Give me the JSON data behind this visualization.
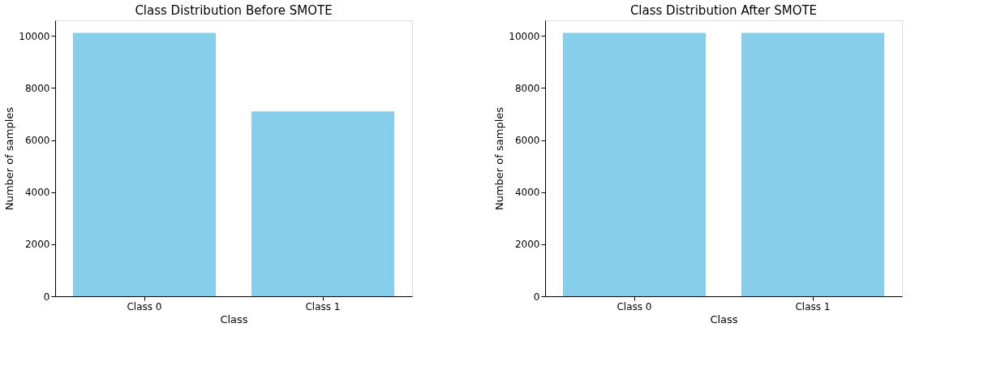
{
  "chart_data": [
    {
      "type": "bar",
      "title": "Class Distribution Before SMOTE",
      "xlabel": "Class",
      "ylabel": "Number of samples",
      "categories": [
        "Class 0",
        "Class 1"
      ],
      "values": [
        10120,
        7100
      ],
      "color": "#87ceeb",
      "ylim": [
        0,
        10600
      ],
      "yticks": [
        0,
        2000,
        4000,
        6000,
        8000,
        10000
      ],
      "grid": false
    },
    {
      "type": "bar",
      "title": "Class Distribution After SMOTE",
      "xlabel": "Class",
      "ylabel": "Number of samples",
      "categories": [
        "Class 0",
        "Class 1"
      ],
      "values": [
        10120,
        10120
      ],
      "color": "#87ceeb",
      "ylim": [
        0,
        10600
      ],
      "yticks": [
        0,
        2000,
        4000,
        6000,
        8000,
        10000
      ],
      "grid": false
    }
  ]
}
